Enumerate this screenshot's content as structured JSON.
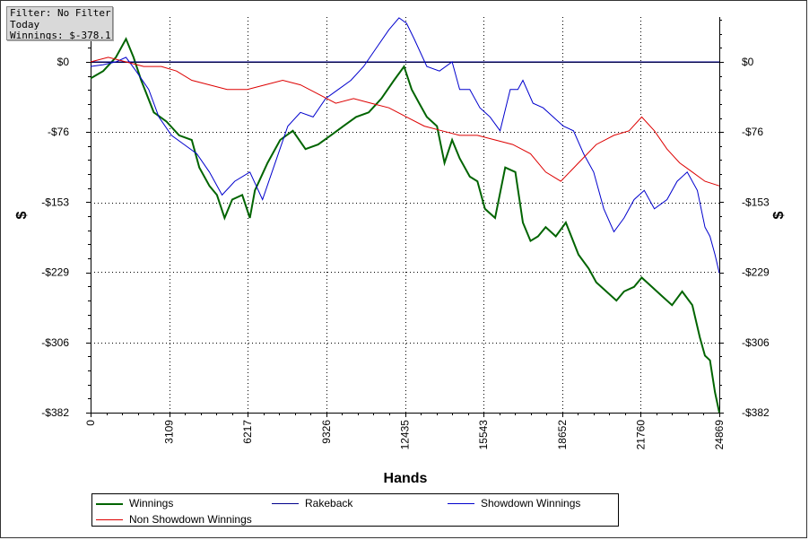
{
  "filter_box": {
    "line1": "Filter: No Filter",
    "line2": "Today",
    "line3": "Winnings: $-378.11"
  },
  "legend": {
    "items": [
      {
        "label": "Winnings",
        "color": "#006400"
      },
      {
        "label": "Rakeback",
        "color": "#00008b"
      },
      {
        "label": "Showdown Winnings",
        "color": "#0000cd"
      },
      {
        "label": "Non Showdown Winnings",
        "color": "#dd0000"
      }
    ]
  },
  "chart_data": {
    "type": "line",
    "xlabel": "Hands",
    "ylabel": "$",
    "xlim": [
      0,
      24869
    ],
    "ylim": [
      -382,
      50
    ],
    "x_ticks": [
      0,
      3109,
      6217,
      9326,
      12435,
      15543,
      18652,
      21760,
      24869
    ],
    "y_ticks": [
      0,
      -76,
      -153,
      -229,
      -306,
      -382
    ],
    "y_tick_labels": [
      "$0",
      "-$76",
      "-$153",
      "-$229",
      "-$306",
      "-$382"
    ],
    "grid": true,
    "legend_position": "bottom",
    "series": [
      {
        "name": "Winnings",
        "color": "#006400",
        "x": [
          0,
          500,
          1000,
          1400,
          1700,
          2000,
          2500,
          3000,
          3500,
          4000,
          4300,
          4700,
          5000,
          5300,
          5600,
          6000,
          6300,
          6500,
          7000,
          7500,
          8000,
          8500,
          9000,
          9500,
          10000,
          10500,
          11000,
          11500,
          12000,
          12400,
          12700,
          13000,
          13300,
          13700,
          14000,
          14300,
          14600,
          15000,
          15300,
          15600,
          16000,
          16400,
          16800,
          17100,
          17400,
          17700,
          18000,
          18400,
          18800,
          19300,
          19700,
          20000,
          20400,
          20800,
          21100,
          21500,
          21800,
          22200,
          22600,
          23000,
          23400,
          23800,
          24100,
          24300,
          24500,
          24700,
          24869
        ],
        "values": [
          -18,
          -10,
          5,
          25,
          5,
          -20,
          -55,
          -65,
          -80,
          -85,
          -115,
          -135,
          -145,
          -170,
          -150,
          -145,
          -170,
          -140,
          -110,
          -85,
          -75,
          -95,
          -90,
          -80,
          -70,
          -60,
          -55,
          -40,
          -20,
          -5,
          -30,
          -45,
          -60,
          -70,
          -110,
          -85,
          -105,
          -125,
          -130,
          -160,
          -170,
          -115,
          -120,
          -175,
          -195,
          -190,
          -180,
          -190,
          -175,
          -210,
          -225,
          -240,
          -250,
          -260,
          -250,
          -245,
          -235,
          -245,
          -255,
          -265,
          -250,
          -265,
          -300,
          -320,
          -325,
          -360,
          -382
        ]
      },
      {
        "name": "Rakeback",
        "color": "#00008b",
        "x": [
          0,
          24869
        ],
        "values": [
          0,
          0
        ]
      },
      {
        "name": "Showdown Winnings",
        "color": "#0000cd",
        "x": [
          0,
          500,
          1000,
          1400,
          1800,
          2300,
          2700,
          3200,
          3700,
          4200,
          4700,
          5200,
          5700,
          6300,
          6800,
          7300,
          7800,
          8300,
          8800,
          9300,
          9800,
          10300,
          10800,
          11300,
          11800,
          12200,
          12500,
          12800,
          13300,
          13800,
          14300,
          14600,
          15000,
          15400,
          15800,
          16200,
          16600,
          16900,
          17100,
          17500,
          17900,
          18300,
          18700,
          19100,
          19500,
          19900,
          20300,
          20700,
          21100,
          21500,
          21900,
          22300,
          22800,
          23200,
          23600,
          24000,
          24300,
          24500,
          24700,
          24869
        ],
        "values": [
          -5,
          -3,
          0,
          5,
          -10,
          -30,
          -60,
          -80,
          -90,
          -100,
          -120,
          -145,
          -130,
          -120,
          -150,
          -110,
          -70,
          -55,
          -60,
          -40,
          -30,
          -20,
          -5,
          15,
          35,
          48,
          42,
          25,
          -5,
          -10,
          0,
          -30,
          -30,
          -50,
          -60,
          -75,
          -30,
          -30,
          -20,
          -45,
          -50,
          -60,
          -70,
          -75,
          -100,
          -120,
          -160,
          -185,
          -170,
          -150,
          -140,
          -160,
          -150,
          -130,
          -120,
          -140,
          -180,
          -190,
          -210,
          -230
        ]
      },
      {
        "name": "Non Showdown Winnings",
        "color": "#dd0000",
        "x": [
          0,
          700,
          1400,
          2100,
          2800,
          3400,
          4000,
          4700,
          5400,
          6200,
          6900,
          7600,
          8300,
          9000,
          9700,
          10400,
          11100,
          11800,
          12500,
          13200,
          13900,
          14600,
          15300,
          16000,
          16700,
          17400,
          18000,
          18600,
          19300,
          20000,
          20700,
          21300,
          21800,
          22300,
          22800,
          23300,
          23800,
          24300,
          24869
        ],
        "values": [
          0,
          5,
          0,
          -5,
          -5,
          -10,
          -20,
          -25,
          -30,
          -30,
          -25,
          -20,
          -25,
          -35,
          -45,
          -40,
          -45,
          -50,
          -60,
          -70,
          -75,
          -80,
          -80,
          -85,
          -90,
          -100,
          -120,
          -130,
          -110,
          -90,
          -80,
          -75,
          -60,
          -75,
          -95,
          -110,
          -120,
          -130,
          -135
        ]
      }
    ]
  }
}
